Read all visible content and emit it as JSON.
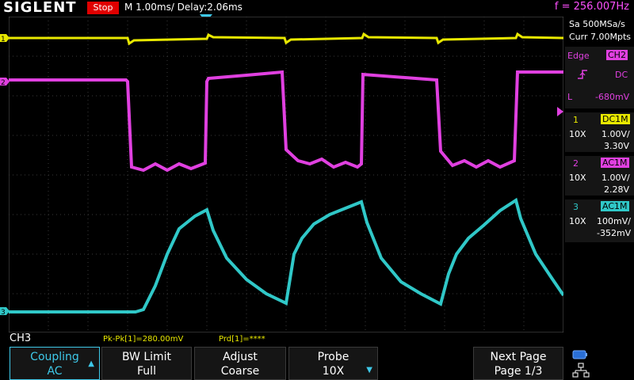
{
  "brand": "SIGLENT",
  "run_state": "Stop",
  "timebase": "M 1.00ms/ Delay:2.06ms",
  "frequency": "f = 256.007Hz",
  "acquisition": {
    "sample_rate": "Sa 500MSa/s",
    "memory": "Curr 7.00Mpts"
  },
  "trigger": {
    "type": "Edge",
    "source": "CH2",
    "slope_icon": "rising-edge-icon",
    "coupling": "DC",
    "level_label": "L",
    "level": "-680mV"
  },
  "channels": [
    {
      "num": "1",
      "probe": "10X",
      "coupling": "DC1M",
      "scale": "1.00V/",
      "offset": "3.30V",
      "color": "#e8e800"
    },
    {
      "num": "2",
      "probe": "10X",
      "coupling": "AC1M",
      "scale": "1.00V/",
      "offset": "2.28V",
      "color": "#e040e0"
    },
    {
      "num": "3",
      "probe": "10X",
      "coupling": "AC1M",
      "scale": "100mV/",
      "offset": "-352mV",
      "color": "#30c8c8"
    }
  ],
  "selected_channel": "CH3",
  "measurements": [
    "Pk-Pk[1]=280.00mV",
    "Prd[1]=****"
  ],
  "softkeys": [
    {
      "title": "Coupling",
      "value": "AC"
    },
    {
      "title": "BW Limit",
      "value": "Full"
    },
    {
      "title": "Adjust",
      "value": "Coarse"
    },
    {
      "title": "Probe",
      "value": "10X"
    },
    {
      "title": "Next Page",
      "value": "Page 1/3"
    }
  ],
  "status_icons": [
    "battery-icon",
    "network-icon"
  ]
}
